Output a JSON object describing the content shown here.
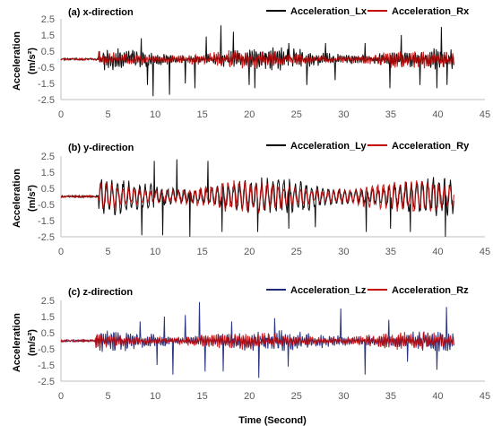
{
  "chart_data": [
    {
      "type": "line",
      "title": "(a) x-direction",
      "ylabel": "Acceleration",
      "yunit": "(m/s²)",
      "xlim": [
        0,
        45
      ],
      "ylim": [
        -2.5,
        2.5
      ],
      "x_ticks": [
        "0",
        "5",
        "10",
        "15",
        "20",
        "25",
        "30",
        "35",
        "40",
        "45"
      ],
      "y_ticks": [
        "2.5",
        "1.5",
        "0.5",
        "-0.5",
        "-1.5",
        "-2.5"
      ],
      "legend_position": "top-right",
      "series": [
        {
          "name": "Acceleration_Lx",
          "color": "#000000",
          "duration": 41.7,
          "rms": 0.35,
          "onset": 4.0,
          "spikes": [
            [
              8.5,
              1.3
            ],
            [
              9.2,
              -1.6
            ],
            [
              9.8,
              -2.3
            ],
            [
              11.5,
              -2.2
            ],
            [
              13.2,
              -1.5
            ],
            [
              14.2,
              -1.8
            ],
            [
              15.4,
              1.4
            ],
            [
              17.0,
              2.1
            ],
            [
              18.3,
              1.7
            ],
            [
              20.0,
              -1.6
            ],
            [
              20.6,
              -1.8
            ],
            [
              24.2,
              1.0
            ],
            [
              26.1,
              -1.6
            ],
            [
              28.1,
              1.0
            ],
            [
              29.1,
              -1.3
            ],
            [
              32.3,
              1.0
            ],
            [
              34.9,
              -1.8
            ],
            [
              36.1,
              1.5
            ],
            [
              38.1,
              -1.6
            ],
            [
              39.9,
              -1.8
            ],
            [
              40.4,
              2.0
            ],
            [
              41.0,
              -1.6
            ]
          ]
        },
        {
          "name": "Acceleration_Rx",
          "color": "#c00000",
          "duration": 41.7,
          "rms": 0.28,
          "onset": 4.0,
          "spikes": []
        }
      ]
    },
    {
      "type": "line",
      "title": "(b) y-direction",
      "ylabel": "Acceleration",
      "yunit": "(m/s²)",
      "xlim": [
        0,
        45
      ],
      "ylim": [
        -2.5,
        2.5
      ],
      "x_ticks": [
        "0",
        "5",
        "10",
        "15",
        "20",
        "25",
        "30",
        "35",
        "40",
        "45"
      ],
      "y_ticks": [
        "2.5",
        "1.5",
        "0.5",
        "-0.5",
        "-1.5",
        "-2.5"
      ],
      "legend_position": "top-right",
      "series": [
        {
          "name": "Acceleration_Ly",
          "color": "#000000",
          "duration": 41.7,
          "rms": 0.8,
          "onset": 4.0,
          "spikes": [
            [
              8.6,
              -2.4
            ],
            [
              9.9,
              2.2
            ],
            [
              10.8,
              -2.4
            ],
            [
              12.3,
              2.3
            ],
            [
              13.7,
              -2.5
            ],
            [
              15.6,
              2.2
            ],
            [
              17.1,
              -2.2
            ],
            [
              20.9,
              -2.2
            ],
            [
              24.2,
              -2.0
            ],
            [
              27.0,
              -1.9
            ],
            [
              32.4,
              -2.2
            ],
            [
              35.0,
              -2.0
            ],
            [
              37.1,
              -2.2
            ],
            [
              40.8,
              -2.5
            ]
          ]
        },
        {
          "name": "Acceleration_Ry",
          "color": "#c00000",
          "duration": 41.7,
          "rms": 0.7,
          "onset": 4.0,
          "spikes": []
        }
      ]
    },
    {
      "type": "line",
      "title": "(c) z-direction",
      "ylabel": "Acceleration",
      "yunit": "(m/s²)",
      "xlabel": "Time  (Second)",
      "xlim": [
        0,
        45
      ],
      "ylim": [
        -2.5,
        2.5
      ],
      "x_ticks": [
        "0",
        "5",
        "10",
        "15",
        "20",
        "25",
        "30",
        "35",
        "40",
        "45"
      ],
      "y_ticks": [
        "2.5",
        "1.5",
        "0.5",
        "-0.5",
        "-1.5",
        "-2.5"
      ],
      "legend_position": "top-right",
      "series": [
        {
          "name": "Acceleration_Lz",
          "color": "#1f2a7a",
          "duration": 41.7,
          "rms": 0.35,
          "onset": 3.6,
          "spikes": [
            [
              8.4,
              1.2
            ],
            [
              10.2,
              -1.5
            ],
            [
              11.0,
              1.5
            ],
            [
              11.9,
              -2.1
            ],
            [
              13.2,
              1.6
            ],
            [
              14.7,
              2.4
            ],
            [
              15.3,
              -1.9
            ],
            [
              17.2,
              -1.9
            ],
            [
              18.1,
              1.2
            ],
            [
              21.0,
              -2.3
            ],
            [
              22.7,
              1.4
            ],
            [
              24.1,
              -1.6
            ],
            [
              29.7,
              2.0
            ],
            [
              32.3,
              -2.1
            ],
            [
              34.8,
              1.3
            ],
            [
              36.8,
              -1.3
            ],
            [
              39.9,
              -1.8
            ],
            [
              40.9,
              2.1
            ]
          ]
        },
        {
          "name": "Acceleration_Rz",
          "color": "#c00000",
          "duration": 41.7,
          "rms": 0.28,
          "onset": 3.6,
          "spikes": []
        }
      ]
    }
  ]
}
